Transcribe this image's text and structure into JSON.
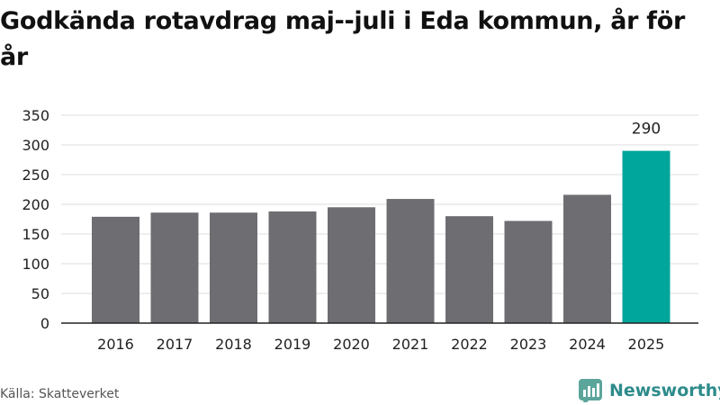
{
  "chart_data": {
    "type": "bar",
    "title": "Godkända rotavdrag maj--juli i Eda kommun, år för år",
    "categories": [
      "2016",
      "2017",
      "2018",
      "2019",
      "2020",
      "2021",
      "2022",
      "2023",
      "2024",
      "2025"
    ],
    "values": [
      179,
      186,
      186,
      188,
      195,
      209,
      180,
      172,
      216,
      290
    ],
    "highlight_label": "290",
    "ylim": [
      0,
      350
    ],
    "yticks": [
      "0",
      "50",
      "100",
      "150",
      "200",
      "250",
      "300",
      "350"
    ],
    "grid": true,
    "colors": {
      "bar": "#6e6d72",
      "highlight": "#00a59b",
      "grid": "#dddddd",
      "axis": "#222222"
    }
  },
  "footer": {
    "source": "Källa: Skatteverket",
    "brand": "Newsworthy",
    "brand_icon": "newsworthy-logo-icon",
    "brand_color": "#2e8b8b"
  }
}
